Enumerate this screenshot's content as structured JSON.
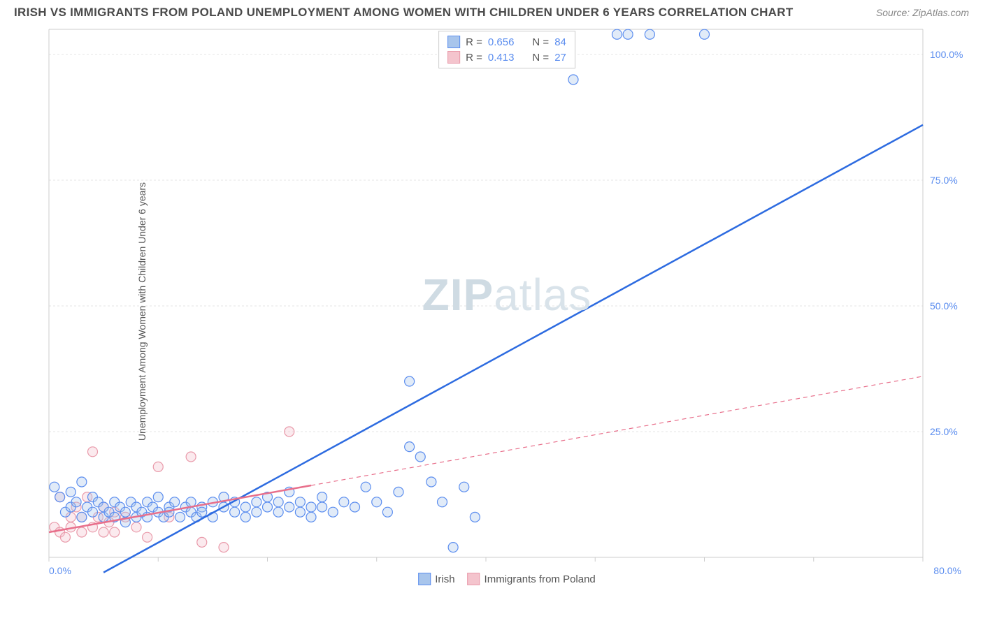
{
  "title": "IRISH VS IMMIGRANTS FROM POLAND UNEMPLOYMENT AMONG WOMEN WITH CHILDREN UNDER 6 YEARS CORRELATION CHART",
  "source": "Source: ZipAtlas.com",
  "y_axis_label": "Unemployment Among Women with Children Under 6 years",
  "watermark": {
    "part1": "ZIP",
    "part2": "atlas"
  },
  "chart": {
    "type": "scatter",
    "background_color": "#ffffff",
    "grid_color": "#e5e5e5",
    "axis_color": "#cccccc",
    "tick_label_color": "#5b8def",
    "xlim": [
      0,
      80
    ],
    "ylim": [
      0,
      105
    ],
    "x_ticks": [
      0,
      10,
      20,
      30,
      40,
      50,
      60,
      70,
      80
    ],
    "x_tick_labels": {
      "0": "0.0%",
      "80": "80.0%"
    },
    "y_ticks": [
      25,
      50,
      75,
      100
    ],
    "y_tick_labels": {
      "25": "25.0%",
      "50": "50.0%",
      "75": "75.0%",
      "100": "100.0%"
    },
    "marker_radius": 7,
    "marker_stroke_width": 1.2,
    "marker_fill_opacity": 0.35,
    "line_width_solid": 2.5,
    "line_width_dashed": 1.2,
    "dash_pattern": "6 5"
  },
  "legend_top": {
    "rows": [
      {
        "swatch_fill": "#a8c5ec",
        "swatch_stroke": "#5b8def",
        "r_label": "R =",
        "r_val": "0.656",
        "n_label": "N =",
        "n_val": "84"
      },
      {
        "swatch_fill": "#f4c4cd",
        "swatch_stroke": "#e99aaa",
        "r_label": "R =",
        "r_val": "0.413",
        "n_label": "N =",
        "n_val": "27"
      }
    ]
  },
  "legend_bottom": {
    "items": [
      {
        "swatch_fill": "#a8c5ec",
        "swatch_stroke": "#5b8def",
        "label": "Irish"
      },
      {
        "swatch_fill": "#f4c4cd",
        "swatch_stroke": "#e99aaa",
        "label": "Immigrants from Poland"
      }
    ]
  },
  "series": [
    {
      "name": "Irish",
      "marker_fill": "#a8c5ec",
      "marker_stroke": "#5b8def",
      "trend": {
        "x1": 5,
        "y1": -3,
        "x2": 80,
        "y2": 86,
        "color": "#2d6be0",
        "solid_until_x": 80,
        "dashed": false
      },
      "points": [
        [
          0.5,
          14
        ],
        [
          1,
          12
        ],
        [
          1.5,
          9
        ],
        [
          2,
          10
        ],
        [
          2,
          13
        ],
        [
          2.5,
          11
        ],
        [
          3,
          8
        ],
        [
          3,
          15
        ],
        [
          3.5,
          10
        ],
        [
          4,
          9
        ],
        [
          4,
          12
        ],
        [
          4.5,
          11
        ],
        [
          5,
          8
        ],
        [
          5,
          10
        ],
        [
          5.5,
          9
        ],
        [
          6,
          11
        ],
        [
          6,
          8
        ],
        [
          6.5,
          10
        ],
        [
          7,
          9
        ],
        [
          7,
          7
        ],
        [
          7.5,
          11
        ],
        [
          8,
          8
        ],
        [
          8,
          10
        ],
        [
          8.5,
          9
        ],
        [
          9,
          11
        ],
        [
          9,
          8
        ],
        [
          9.5,
          10
        ],
        [
          10,
          9
        ],
        [
          10,
          12
        ],
        [
          10.5,
          8
        ],
        [
          11,
          10
        ],
        [
          11,
          9
        ],
        [
          11.5,
          11
        ],
        [
          12,
          8
        ],
        [
          12.5,
          10
        ],
        [
          13,
          9
        ],
        [
          13,
          11
        ],
        [
          13.5,
          8
        ],
        [
          14,
          10
        ],
        [
          14,
          9
        ],
        [
          15,
          11
        ],
        [
          15,
          8
        ],
        [
          16,
          10
        ],
        [
          16,
          12
        ],
        [
          17,
          9
        ],
        [
          17,
          11
        ],
        [
          18,
          10
        ],
        [
          18,
          8
        ],
        [
          19,
          11
        ],
        [
          19,
          9
        ],
        [
          20,
          10
        ],
        [
          20,
          12
        ],
        [
          21,
          9
        ],
        [
          21,
          11
        ],
        [
          22,
          10
        ],
        [
          22,
          13
        ],
        [
          23,
          9
        ],
        [
          23,
          11
        ],
        [
          24,
          10
        ],
        [
          24,
          8
        ],
        [
          25,
          12
        ],
        [
          25,
          10
        ],
        [
          26,
          9
        ],
        [
          27,
          11
        ],
        [
          28,
          10
        ],
        [
          29,
          14
        ],
        [
          30,
          11
        ],
        [
          31,
          9
        ],
        [
          32,
          13
        ],
        [
          33,
          22
        ],
        [
          34,
          20
        ],
        [
          35,
          15
        ],
        [
          36,
          11
        ],
        [
          37,
          2
        ],
        [
          38,
          14
        ],
        [
          39,
          8
        ],
        [
          33,
          35
        ],
        [
          40,
          103
        ],
        [
          41,
          103
        ],
        [
          48,
          95
        ],
        [
          52,
          104
        ],
        [
          53,
          104
        ],
        [
          55,
          104
        ],
        [
          60,
          104
        ]
      ]
    },
    {
      "name": "Immigrants from Poland",
      "marker_fill": "#f4c4cd",
      "marker_stroke": "#e99aaa",
      "trend": {
        "x1": 0,
        "y1": 5,
        "x2": 80,
        "y2": 36,
        "color": "#e86f8b",
        "solid_until_x": 24,
        "dashed": true
      },
      "points": [
        [
          0.5,
          6
        ],
        [
          1,
          5
        ],
        [
          1,
          12
        ],
        [
          1.5,
          4
        ],
        [
          2,
          8
        ],
        [
          2,
          6
        ],
        [
          2.5,
          10
        ],
        [
          3,
          5
        ],
        [
          3,
          8
        ],
        [
          3.5,
          12
        ],
        [
          4,
          6
        ],
        [
          4,
          21
        ],
        [
          4.5,
          8
        ],
        [
          5,
          5
        ],
        [
          5,
          10
        ],
        [
          5.5,
          7
        ],
        [
          6,
          9
        ],
        [
          6,
          5
        ],
        [
          7,
          8
        ],
        [
          8,
          6
        ],
        [
          9,
          4
        ],
        [
          10,
          18
        ],
        [
          11,
          8
        ],
        [
          13,
          20
        ],
        [
          14,
          3
        ],
        [
          16,
          2
        ],
        [
          22,
          25
        ]
      ]
    }
  ]
}
